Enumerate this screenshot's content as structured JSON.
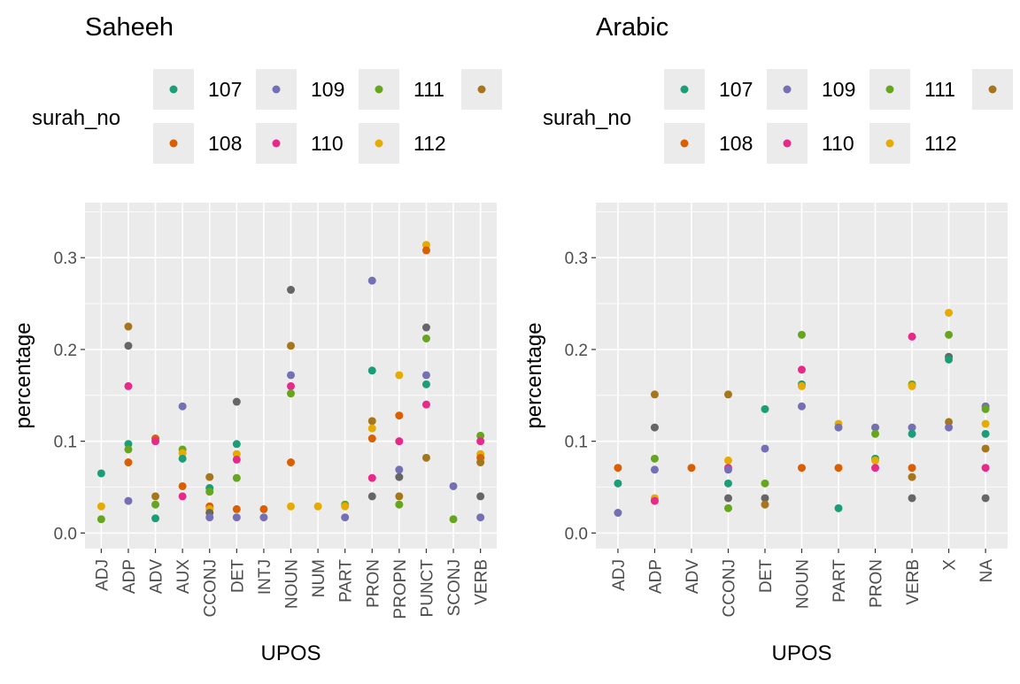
{
  "legend_title": "surah_no",
  "legend_keys": [
    "107",
    "108",
    "109",
    "110",
    "111",
    "112",
    "113"
  ],
  "legend_labels": [
    "107",
    "108",
    "109",
    "110",
    "111",
    "112",
    ""
  ],
  "colors": {
    "107": "#1b9e77",
    "108": "#d95f02",
    "109": "#7570b3",
    "110": "#e7298a",
    "111": "#66a61e",
    "112": "#e6ab02",
    "113": "#a6761d",
    "114": "#666666"
  },
  "chart_data": [
    {
      "type": "scatter",
      "title": "Saheeh",
      "xlabel": "UPOS",
      "ylabel": "percentage",
      "ylim": [
        -0.017,
        0.36
      ],
      "yticks": [
        0.0,
        0.1,
        0.2,
        0.3
      ],
      "ytick_labels": [
        "0.0",
        "0.1",
        "0.2",
        "0.3"
      ],
      "grid": true,
      "legend_position": "top",
      "categories": [
        "ADJ",
        "ADP",
        "ADV",
        "AUX",
        "CCONJ",
        "DET",
        "INTJ",
        "NOUN",
        "NUM",
        "PART",
        "PRON",
        "PROPN",
        "PUNCT",
        "SCONJ",
        "VERB"
      ],
      "points": [
        {
          "x": "ADJ",
          "y": 0.065,
          "s": "107"
        },
        {
          "x": "ADJ",
          "y": 0.029,
          "s": "112"
        },
        {
          "x": "ADJ",
          "y": 0.015,
          "s": "111"
        },
        {
          "x": "ADP",
          "y": 0.225,
          "s": "113"
        },
        {
          "x": "ADP",
          "y": 0.204,
          "s": "114"
        },
        {
          "x": "ADP",
          "y": 0.16,
          "s": "110"
        },
        {
          "x": "ADP",
          "y": 0.097,
          "s": "107"
        },
        {
          "x": "ADP",
          "y": 0.091,
          "s": "111"
        },
        {
          "x": "ADP",
          "y": 0.077,
          "s": "108"
        },
        {
          "x": "ADP",
          "y": 0.035,
          "s": "109"
        },
        {
          "x": "ADV",
          "y": 0.103,
          "s": "108"
        },
        {
          "x": "ADV",
          "y": 0.1,
          "s": "110"
        },
        {
          "x": "ADV",
          "y": 0.04,
          "s": "113"
        },
        {
          "x": "ADV",
          "y": 0.031,
          "s": "111"
        },
        {
          "x": "ADV",
          "y": 0.016,
          "s": "107"
        },
        {
          "x": "AUX",
          "y": 0.138,
          "s": "109"
        },
        {
          "x": "AUX",
          "y": 0.091,
          "s": "111"
        },
        {
          "x": "AUX",
          "y": 0.087,
          "s": "112"
        },
        {
          "x": "AUX",
          "y": 0.081,
          "s": "107"
        },
        {
          "x": "AUX",
          "y": 0.051,
          "s": "108"
        },
        {
          "x": "AUX",
          "y": 0.04,
          "s": "110"
        },
        {
          "x": "CCONJ",
          "y": 0.061,
          "s": "113"
        },
        {
          "x": "CCONJ",
          "y": 0.049,
          "s": "107"
        },
        {
          "x": "CCONJ",
          "y": 0.045,
          "s": "111"
        },
        {
          "x": "CCONJ",
          "y": 0.029,
          "s": "108"
        },
        {
          "x": "CCONJ",
          "y": 0.026,
          "s": "112"
        },
        {
          "x": "CCONJ",
          "y": 0.022,
          "s": "114"
        },
        {
          "x": "CCONJ",
          "y": 0.017,
          "s": "109"
        },
        {
          "x": "DET",
          "y": 0.143,
          "s": "114"
        },
        {
          "x": "DET",
          "y": 0.097,
          "s": "107"
        },
        {
          "x": "DET",
          "y": 0.086,
          "s": "112"
        },
        {
          "x": "DET",
          "y": 0.08,
          "s": "110"
        },
        {
          "x": "DET",
          "y": 0.06,
          "s": "111"
        },
        {
          "x": "DET",
          "y": 0.026,
          "s": "108"
        },
        {
          "x": "DET",
          "y": 0.017,
          "s": "109"
        },
        {
          "x": "INTJ",
          "y": 0.026,
          "s": "108"
        },
        {
          "x": "INTJ",
          "y": 0.017,
          "s": "109"
        },
        {
          "x": "NOUN",
          "y": 0.265,
          "s": "114"
        },
        {
          "x": "NOUN",
          "y": 0.204,
          "s": "113"
        },
        {
          "x": "NOUN",
          "y": 0.172,
          "s": "109"
        },
        {
          "x": "NOUN",
          "y": 0.16,
          "s": "110"
        },
        {
          "x": "NOUN",
          "y": 0.152,
          "s": "111"
        },
        {
          "x": "NOUN",
          "y": 0.077,
          "s": "108"
        },
        {
          "x": "NOUN",
          "y": 0.029,
          "s": "112"
        },
        {
          "x": "NUM",
          "y": 0.029,
          "s": "112"
        },
        {
          "x": "PART",
          "y": 0.031,
          "s": "111"
        },
        {
          "x": "PART",
          "y": 0.029,
          "s": "112"
        },
        {
          "x": "PART",
          "y": 0.017,
          "s": "109"
        },
        {
          "x": "PRON",
          "y": 0.275,
          "s": "109"
        },
        {
          "x": "PRON",
          "y": 0.177,
          "s": "107"
        },
        {
          "x": "PRON",
          "y": 0.122,
          "s": "113"
        },
        {
          "x": "PRON",
          "y": 0.114,
          "s": "112"
        },
        {
          "x": "PRON",
          "y": 0.103,
          "s": "108"
        },
        {
          "x": "PRON",
          "y": 0.06,
          "s": "110"
        },
        {
          "x": "PRON",
          "y": 0.04,
          "s": "114"
        },
        {
          "x": "PROPN",
          "y": 0.172,
          "s": "112"
        },
        {
          "x": "PROPN",
          "y": 0.128,
          "s": "108"
        },
        {
          "x": "PROPN",
          "y": 0.1,
          "s": "110"
        },
        {
          "x": "PROPN",
          "y": 0.069,
          "s": "109"
        },
        {
          "x": "PROPN",
          "y": 0.061,
          "s": "114"
        },
        {
          "x": "PROPN",
          "y": 0.04,
          "s": "113"
        },
        {
          "x": "PROPN",
          "y": 0.031,
          "s": "111"
        },
        {
          "x": "PUNCT",
          "y": 0.314,
          "s": "112"
        },
        {
          "x": "PUNCT",
          "y": 0.308,
          "s": "108"
        },
        {
          "x": "PUNCT",
          "y": 0.224,
          "s": "114"
        },
        {
          "x": "PUNCT",
          "y": 0.212,
          "s": "111"
        },
        {
          "x": "PUNCT",
          "y": 0.172,
          "s": "109"
        },
        {
          "x": "PUNCT",
          "y": 0.162,
          "s": "107"
        },
        {
          "x": "PUNCT",
          "y": 0.14,
          "s": "110"
        },
        {
          "x": "PUNCT",
          "y": 0.082,
          "s": "113"
        },
        {
          "x": "SCONJ",
          "y": 0.051,
          "s": "109"
        },
        {
          "x": "SCONJ",
          "y": 0.015,
          "s": "111"
        },
        {
          "x": "VERB",
          "y": 0.106,
          "s": "111"
        },
        {
          "x": "VERB",
          "y": 0.1,
          "s": "110"
        },
        {
          "x": "VERB",
          "y": 0.086,
          "s": "112"
        },
        {
          "x": "VERB",
          "y": 0.082,
          "s": "108"
        },
        {
          "x": "VERB",
          "y": 0.077,
          "s": "113"
        },
        {
          "x": "VERB",
          "y": 0.04,
          "s": "114"
        },
        {
          "x": "VERB",
          "y": 0.017,
          "s": "109"
        }
      ]
    },
    {
      "type": "scatter",
      "title": "Arabic",
      "xlabel": "UPOS",
      "ylabel": "percentage",
      "ylim": [
        -0.017,
        0.36
      ],
      "yticks": [
        0.0,
        0.1,
        0.2,
        0.3
      ],
      "ytick_labels": [
        "0.0",
        "0.1",
        "0.2",
        "0.3"
      ],
      "grid": true,
      "legend_position": "top",
      "categories": [
        "ADJ",
        "ADP",
        "ADV",
        "CCONJ",
        "DET",
        "NOUN",
        "PART",
        "PRON",
        "VERB",
        "X",
        "NA"
      ],
      "points": [
        {
          "x": "ADJ",
          "y": 0.071,
          "s": "108"
        },
        {
          "x": "ADJ",
          "y": 0.054,
          "s": "107"
        },
        {
          "x": "ADJ",
          "y": 0.022,
          "s": "109"
        },
        {
          "x": "ADP",
          "y": 0.151,
          "s": "113"
        },
        {
          "x": "ADP",
          "y": 0.115,
          "s": "114"
        },
        {
          "x": "ADP",
          "y": 0.081,
          "s": "111"
        },
        {
          "x": "ADP",
          "y": 0.069,
          "s": "109"
        },
        {
          "x": "ADP",
          "y": 0.038,
          "s": "112"
        },
        {
          "x": "ADP",
          "y": 0.035,
          "s": "110"
        },
        {
          "x": "ADV",
          "y": 0.071,
          "s": "108"
        },
        {
          "x": "CCONJ",
          "y": 0.151,
          "s": "113"
        },
        {
          "x": "CCONJ",
          "y": 0.079,
          "s": "112"
        },
        {
          "x": "CCONJ",
          "y": 0.071,
          "s": "110"
        },
        {
          "x": "CCONJ",
          "y": 0.069,
          "s": "109"
        },
        {
          "x": "CCONJ",
          "y": 0.054,
          "s": "107"
        },
        {
          "x": "CCONJ",
          "y": 0.038,
          "s": "114"
        },
        {
          "x": "CCONJ",
          "y": 0.027,
          "s": "111"
        },
        {
          "x": "DET",
          "y": 0.135,
          "s": "107"
        },
        {
          "x": "DET",
          "y": 0.092,
          "s": "109"
        },
        {
          "x": "DET",
          "y": 0.054,
          "s": "111"
        },
        {
          "x": "DET",
          "y": 0.038,
          "s": "114"
        },
        {
          "x": "DET",
          "y": 0.031,
          "s": "113"
        },
        {
          "x": "NOUN",
          "y": 0.216,
          "s": "111"
        },
        {
          "x": "NOUN",
          "y": 0.178,
          "s": "110"
        },
        {
          "x": "NOUN",
          "y": 0.162,
          "s": "107"
        },
        {
          "x": "NOUN",
          "y": 0.16,
          "s": "112"
        },
        {
          "x": "NOUN",
          "y": 0.138,
          "s": "109"
        },
        {
          "x": "NOUN",
          "y": 0.071,
          "s": "108"
        },
        {
          "x": "PART",
          "y": 0.119,
          "s": "112"
        },
        {
          "x": "PART",
          "y": 0.115,
          "s": "109"
        },
        {
          "x": "PART",
          "y": 0.071,
          "s": "108"
        },
        {
          "x": "PART",
          "y": 0.027,
          "s": "107"
        },
        {
          "x": "PRON",
          "y": 0.115,
          "s": "109"
        },
        {
          "x": "PRON",
          "y": 0.108,
          "s": "111"
        },
        {
          "x": "PRON",
          "y": 0.081,
          "s": "107"
        },
        {
          "x": "PRON",
          "y": 0.079,
          "s": "112"
        },
        {
          "x": "PRON",
          "y": 0.071,
          "s": "110"
        },
        {
          "x": "VERB",
          "y": 0.214,
          "s": "110"
        },
        {
          "x": "VERB",
          "y": 0.162,
          "s": "111"
        },
        {
          "x": "VERB",
          "y": 0.16,
          "s": "112"
        },
        {
          "x": "VERB",
          "y": 0.115,
          "s": "109"
        },
        {
          "x": "VERB",
          "y": 0.108,
          "s": "107"
        },
        {
          "x": "VERB",
          "y": 0.071,
          "s": "108"
        },
        {
          "x": "VERB",
          "y": 0.061,
          "s": "113"
        },
        {
          "x": "VERB",
          "y": 0.038,
          "s": "114"
        },
        {
          "x": "X",
          "y": 0.24,
          "s": "112"
        },
        {
          "x": "X",
          "y": 0.216,
          "s": "111"
        },
        {
          "x": "X",
          "y": 0.192,
          "s": "114"
        },
        {
          "x": "X",
          "y": 0.189,
          "s": "107"
        },
        {
          "x": "X",
          "y": 0.121,
          "s": "113"
        },
        {
          "x": "X",
          "y": 0.115,
          "s": "109"
        },
        {
          "x": "NA",
          "y": 0.138,
          "s": "109"
        },
        {
          "x": "NA",
          "y": 0.135,
          "s": "111"
        },
        {
          "x": "NA",
          "y": 0.119,
          "s": "112"
        },
        {
          "x": "NA",
          "y": 0.108,
          "s": "107"
        },
        {
          "x": "NA",
          "y": 0.092,
          "s": "113"
        },
        {
          "x": "NA",
          "y": 0.071,
          "s": "110"
        },
        {
          "x": "NA",
          "y": 0.038,
          "s": "114"
        }
      ]
    }
  ]
}
